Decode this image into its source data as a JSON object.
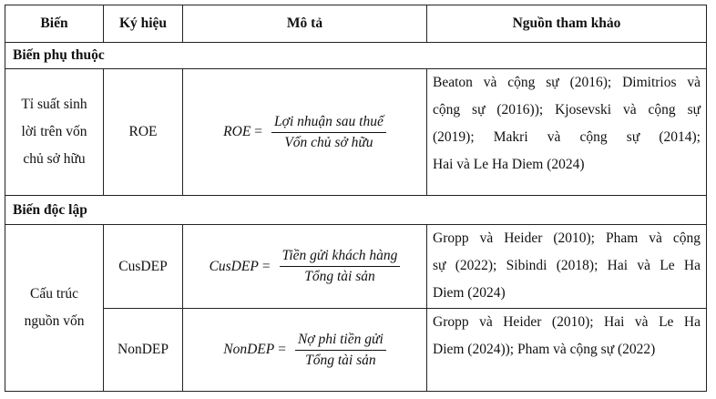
{
  "headers": [
    "Biến",
    "Ký hiệu",
    "Mô tả",
    "Nguồn tham khảo"
  ],
  "sections": [
    {
      "title": "Biến phụ thuộc",
      "rows": [
        {
          "variable_lines": [
            "Tỉ suất sinh",
            "lời trên vốn",
            "chủ sở hữu"
          ],
          "symbol": "ROE",
          "formula": {
            "lhs": "ROE",
            "eq": "=",
            "numerator": "Lợi nhuận sau thuế",
            "denominator": "Vốn chủ sở hữu"
          },
          "reference_lines": [
            "Beaton và cộng sự (2016); Dimitrios và",
            "cộng sự (2016)); Kjosevski và cộng sự",
            "(2019); Makri và cộng sự (2014);",
            "Hai và Le Ha Diem (2024)"
          ]
        }
      ]
    },
    {
      "title": "Biến độc lập",
      "variable_lines": [
        "Cấu trúc",
        "nguồn vốn"
      ],
      "rows": [
        {
          "symbol": "CusDEP",
          "formula": {
            "lhs": "CusDEP",
            "eq": "=",
            "numerator": "Tiền gửi khách hàng",
            "denominator": "Tổng tài sản"
          },
          "reference_lines": [
            "Gropp và Heider (2010); Pham và cộng",
            "sự (2022); Sibindi (2018); Hai và Le Ha",
            "Diem (2024)"
          ]
        },
        {
          "symbol": "NonDEP",
          "formula": {
            "lhs": "NonDEP",
            "eq": "=",
            "numerator": "Nợ phi tiền gửi",
            "denominator": "Tổng tài sản"
          },
          "reference_lines": [
            "Gropp và Heider (2010); Hai và Le Ha",
            "Diem (2024)); Pham và cộng sự (2022)"
          ]
        }
      ]
    }
  ]
}
